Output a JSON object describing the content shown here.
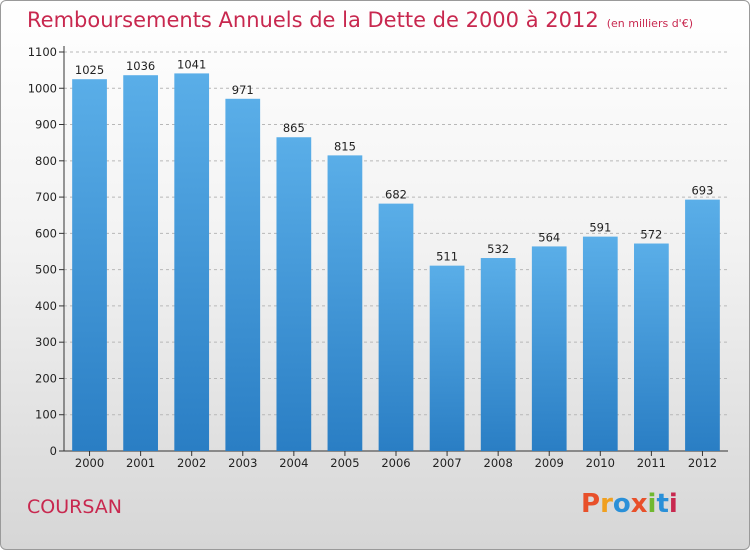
{
  "header": {
    "title": "Remboursements Annuels de la Dette de 2000 à 2012",
    "unit": "(en milliers d'€)"
  },
  "footer": {
    "commune": "COURSAN",
    "logo": "Proxiti"
  },
  "colors": {
    "title": "#c8284f",
    "bar_top": "#5aaee8",
    "bar_bottom": "#2a7ec4",
    "grid": "#b8b8b8",
    "logo": [
      "#e8502a",
      "#f0a020",
      "#2a90d8",
      "#e8502a",
      "#70b830",
      "#2a90d8",
      "#c8284f"
    ]
  },
  "chart_data": {
    "type": "bar",
    "title": "Remboursements Annuels de la Dette de 2000 à 2012",
    "xlabel": "",
    "ylabel": "",
    "categories": [
      "2000",
      "2001",
      "2002",
      "2003",
      "2004",
      "2005",
      "2006",
      "2007",
      "2008",
      "2009",
      "2010",
      "2011",
      "2012"
    ],
    "values": [
      1025,
      1036,
      1041,
      971,
      865,
      815,
      682,
      511,
      532,
      564,
      591,
      572,
      693
    ],
    "ylim": [
      0,
      1100
    ],
    "yticks": [
      0,
      100,
      200,
      300,
      400,
      500,
      600,
      700,
      800,
      900,
      1000,
      1100
    ],
    "grid": true
  }
}
